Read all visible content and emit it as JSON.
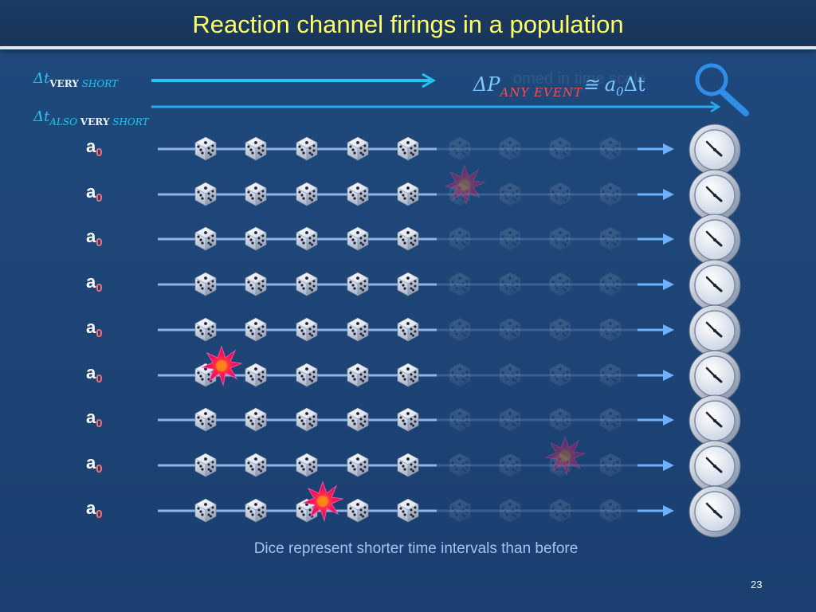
{
  "title": "Reaction channel firings in a population",
  "dt_very_short": {
    "symbol": "Δt",
    "sub_bold": "VERY",
    "sub_italic": "SHORT"
  },
  "dt_also_very_short": {
    "symbol": "Δt",
    "sub_italic": "ALSO",
    "sub_bold": "VERY",
    "sub_italic2": "SHORT"
  },
  "formula": {
    "lhs": "ΔP",
    "sub": "ANY EVENT",
    "rel": "≅",
    "a": "a",
    "a_sub": "0",
    "dt": "Δt"
  },
  "faded_text": "omed in time scale",
  "rows": [
    {
      "label": "a",
      "sub": "0",
      "burst_slot": null
    },
    {
      "label": "a",
      "sub": "0",
      "burst_slot": 6
    },
    {
      "label": "a",
      "sub": "0",
      "burst_slot": null
    },
    {
      "label": "a",
      "sub": "0",
      "burst_slot": null
    },
    {
      "label": "a",
      "sub": "0",
      "burst_slot": null
    },
    {
      "label": "a",
      "sub": "0",
      "burst_slot": 1
    },
    {
      "label": "a",
      "sub": "0",
      "burst_slot": null
    },
    {
      "label": "a",
      "sub": "0",
      "burst_slot": 8
    },
    {
      "label": "a",
      "sub": "0",
      "burst_slot": 3
    }
  ],
  "dice_per_row": {
    "bright": 5,
    "faded": 4
  },
  "footer": "Dice represent shorter time intervals than before",
  "page_number": "23",
  "icons": [
    "dice-icon",
    "burst-icon",
    "clock-icon",
    "magnifier-icon"
  ],
  "colors": {
    "title": "#ffff66",
    "arrow": "#27c3f0",
    "subscript_red": "#ff4b4b",
    "footer": "#9fc5f0"
  }
}
